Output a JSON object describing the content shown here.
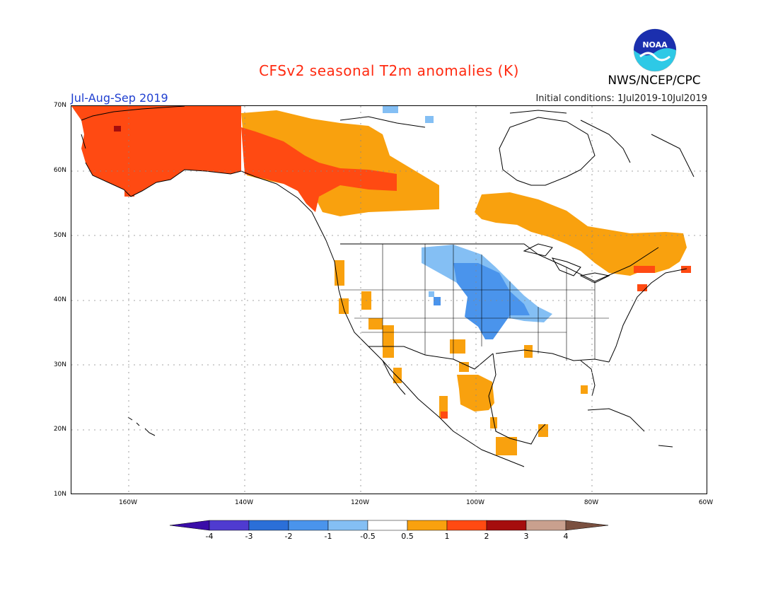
{
  "header": {
    "title": "CFSv2 seasonal T2m anomalies (K)",
    "period": "Jul-Aug-Sep 2019",
    "initial_conditions": "Initial conditions: 1Jul2019-10Jul2019",
    "agency": "NWS/NCEP/CPC",
    "logo_text": "NOAA"
  },
  "map": {
    "lon_range": [
      -170,
      -60
    ],
    "lat_range": [
      10,
      70
    ],
    "lat_labels": [
      "70N",
      "60N",
      "50N",
      "40N",
      "30N",
      "20N",
      "10N"
    ],
    "lon_labels": [
      "160W",
      "140W",
      "120W",
      "100W",
      "80W",
      "60W"
    ],
    "grid": "dotted",
    "anomaly_regions": [
      {
        "name": "Alaska",
        "category": "1 to 2"
      },
      {
        "name": "Yukon and northern British Columbia",
        "category": "0.5 to 1"
      },
      {
        "name": "Central Canada and Quebec",
        "category": "0.5 to 1"
      },
      {
        "name": "Northern New England",
        "category": "1 to 2"
      },
      {
        "name": "Central US Plains",
        "category": "-1 to -0.5"
      },
      {
        "name": "Eastern Nebraska and Kansas",
        "category": "-2 to -1"
      },
      {
        "name": "Texas and northern Mexico",
        "category": "0.5 to 1"
      },
      {
        "name": "California coast",
        "category": "0.5 to 1"
      }
    ]
  },
  "colorbar": {
    "labels": [
      "-4",
      "-3",
      "-2",
      "-1",
      "-0.5",
      "0.5",
      "1",
      "2",
      "3",
      "4"
    ],
    "colors": [
      "#3a0da8",
      "#4f3bd0",
      "#2b6fd8",
      "#4a94ec",
      "#84bff4",
      "#ffffff",
      "#f9a10e",
      "#ff4a12",
      "#a50d0d",
      "#c9a08e",
      "#7a5040"
    ]
  }
}
